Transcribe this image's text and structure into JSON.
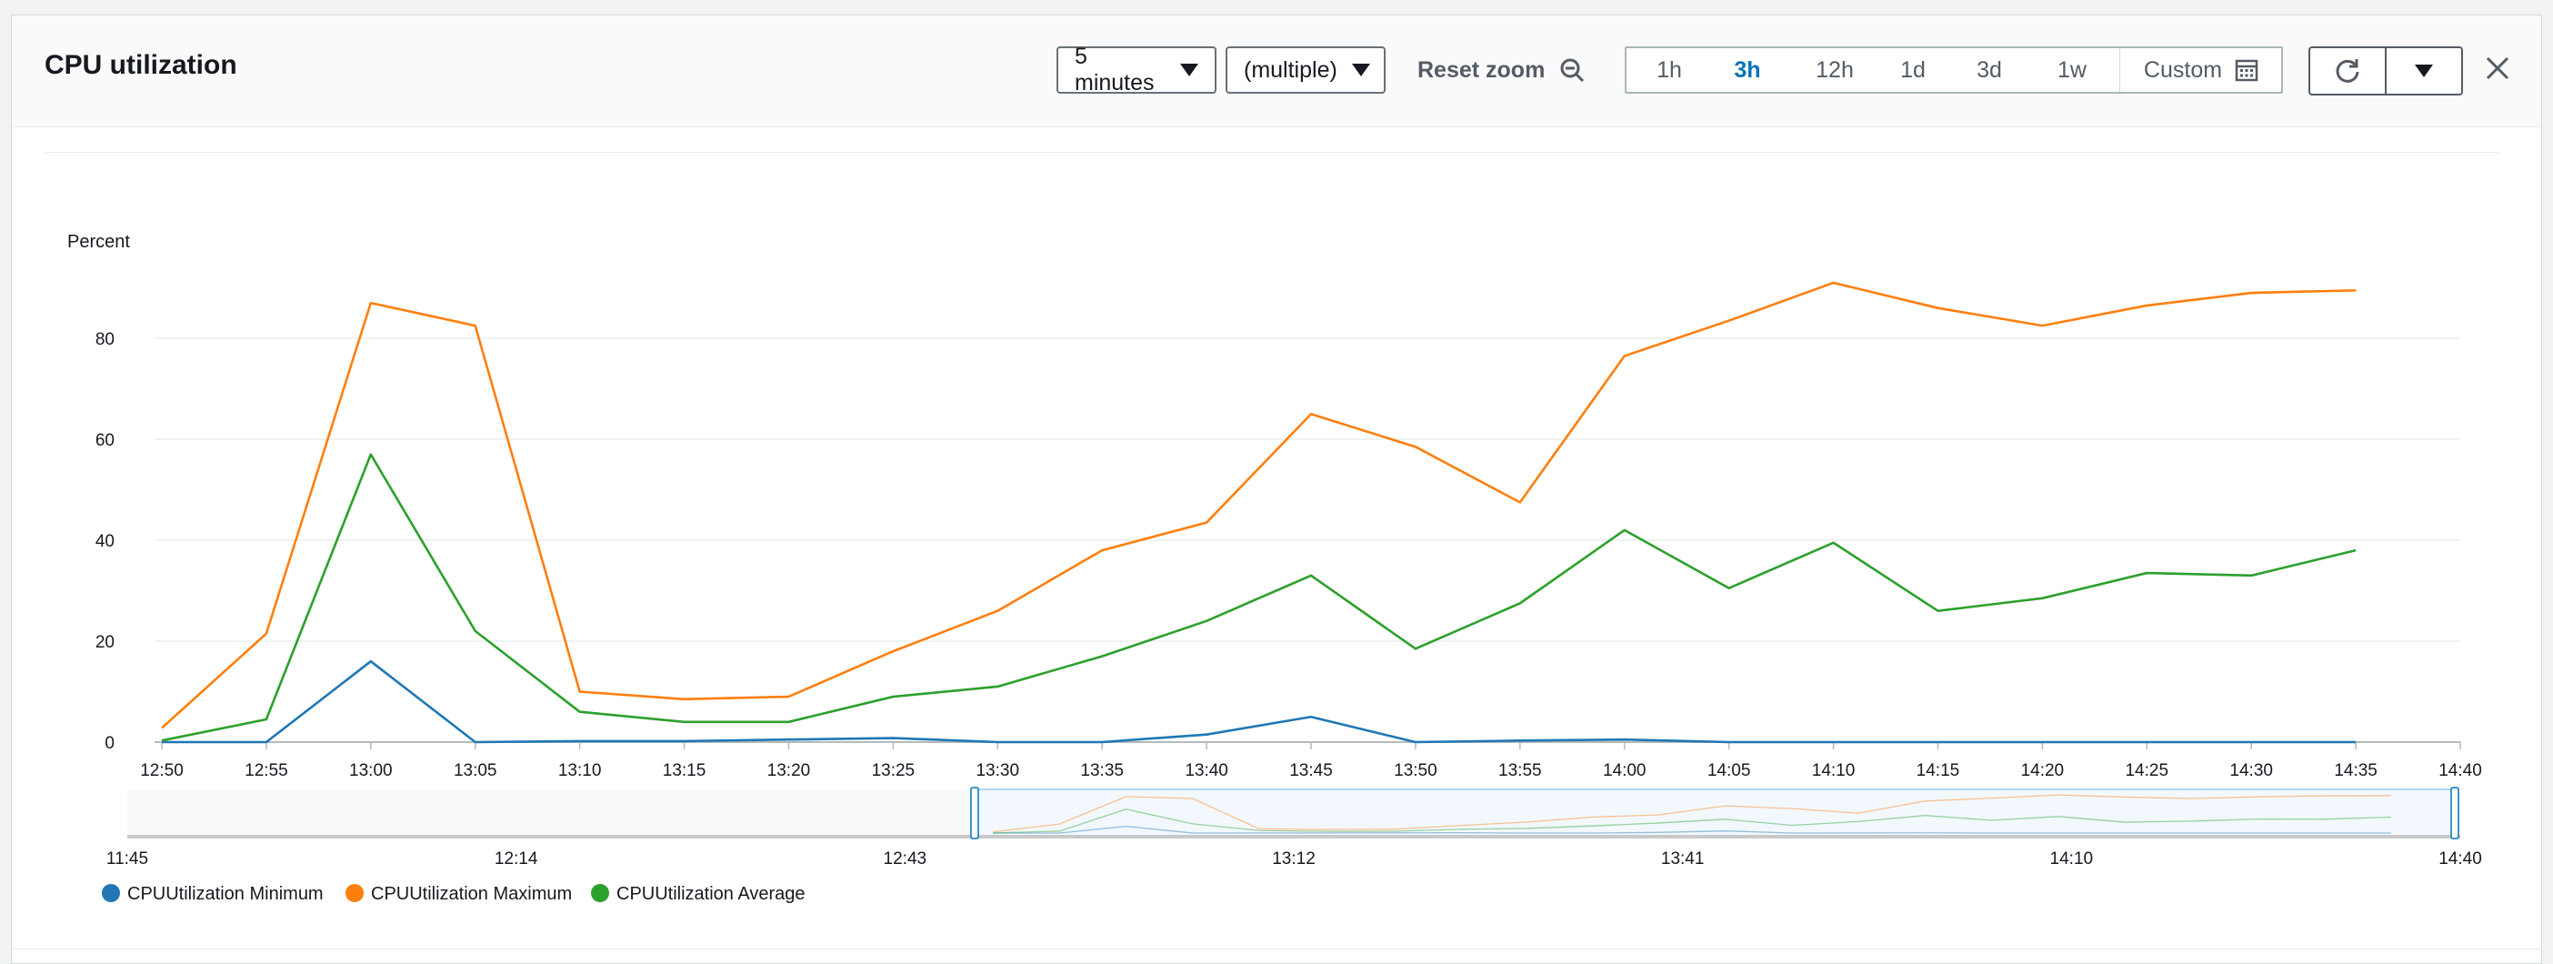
{
  "header": {
    "title": "CPU utilization",
    "period": "5 minutes",
    "statistic": "(multiple)",
    "reset_zoom": "Reset zoom",
    "time_ranges": [
      {
        "label": "1h",
        "active": false
      },
      {
        "label": "3h",
        "active": true
      },
      {
        "label": "12h",
        "active": false
      },
      {
        "label": "1d",
        "active": false
      },
      {
        "label": "3d",
        "active": false
      },
      {
        "label": "1w",
        "active": false
      }
    ],
    "custom": "Custom"
  },
  "colors": {
    "minimum": "#1f77b4",
    "maximum": "#ff7f0e",
    "average": "#2ca02c",
    "accent": "#0073bb"
  },
  "chart_data": {
    "type": "line",
    "ylabel": "Percent",
    "ylim": [
      0,
      100
    ],
    "yticks": [
      0,
      20,
      40,
      60,
      80
    ],
    "x": [
      "12:50",
      "12:55",
      "13:00",
      "13:05",
      "13:10",
      "13:15",
      "13:20",
      "13:25",
      "13:30",
      "13:35",
      "13:40",
      "13:45",
      "13:50",
      "13:55",
      "14:00",
      "14:05",
      "14:10",
      "14:15",
      "14:20",
      "14:25",
      "14:30",
      "14:35"
    ],
    "xticks": [
      "12:50",
      "12:55",
      "13:00",
      "13:05",
      "13:10",
      "13:15",
      "13:20",
      "13:25",
      "13:30",
      "13:35",
      "13:40",
      "13:45",
      "13:50",
      "13:55",
      "14:00",
      "14:05",
      "14:10",
      "14:15",
      "14:20",
      "14:25",
      "14:30",
      "14:35",
      "14:40"
    ],
    "series": [
      {
        "name": "CPUUtilization Minimum",
        "color": "#1f77b4",
        "values": [
          0,
          0,
          16,
          0,
          0.2,
          0.2,
          0.5,
          0.8,
          0,
          0,
          1.5,
          5,
          0,
          0.3,
          0.5,
          0,
          0,
          0,
          0,
          0,
          0,
          0
        ]
      },
      {
        "name": "CPUUtilization Maximum",
        "color": "#ff7f0e",
        "values": [
          2.8,
          21.5,
          87,
          82.5,
          10,
          8.5,
          9,
          18,
          26,
          38,
          43.5,
          65,
          58.5,
          47.5,
          76.5,
          83.5,
          91,
          86,
          82.5,
          86.5,
          89,
          89.5
        ]
      },
      {
        "name": "CPUUtilization Average",
        "color": "#2ca02c",
        "values": [
          0.3,
          4.5,
          57,
          22,
          6,
          4,
          4,
          9,
          11,
          17,
          24,
          33,
          18.5,
          27.5,
          42,
          30.5,
          39.5,
          26,
          28.5,
          33.5,
          33,
          38
        ]
      }
    ],
    "overview": {
      "xticks": [
        "11:45",
        "12:14",
        "12:43",
        "13:12",
        "13:41",
        "14:10",
        "14:40"
      ]
    },
    "legend_position": "bottom-left",
    "grid": true
  }
}
